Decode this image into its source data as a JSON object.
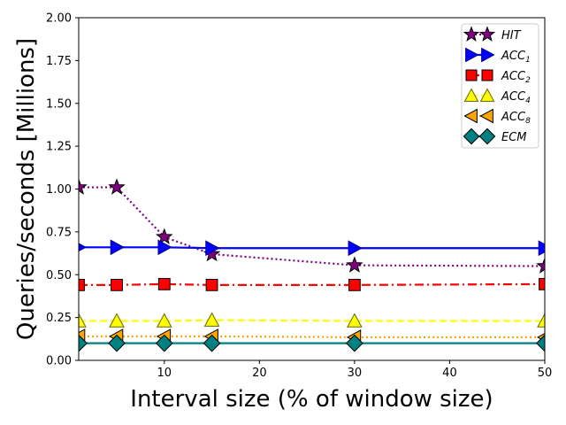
{
  "chart_data": {
    "type": "line",
    "xlabel": "Interval size (% of window size)",
    "ylabel": "Queries/seconds [Millions]",
    "xlim": [
      1,
      50
    ],
    "ylim": [
      0,
      2.0
    ],
    "x_ticks": [
      10,
      20,
      30,
      40,
      50
    ],
    "y_ticks": [
      0.0,
      0.25,
      0.5,
      0.75,
      1.0,
      1.25,
      1.5,
      1.75,
      2.0
    ],
    "x_tick_labels": [
      "10",
      "20",
      "30",
      "40",
      "50"
    ],
    "y_tick_labels": [
      "0.00",
      "0.25",
      "0.50",
      "0.75",
      "1.00",
      "1.25",
      "1.50",
      "1.75",
      "2.00"
    ],
    "legend_position": "top-right",
    "grid": false,
    "x": [
      1,
      5,
      10,
      15,
      30,
      50
    ],
    "series": [
      {
        "key": "hit",
        "label_base": "HIT",
        "label_sub": "",
        "color": "#800080",
        "edge": "#000000",
        "marker": "star",
        "linestyle": "dotted",
        "values": [
          1.01,
          1.01,
          0.72,
          0.62,
          0.555,
          0.55
        ]
      },
      {
        "key": "acc1",
        "label_base": "ACC",
        "label_sub": "1",
        "color": "#0000ff",
        "edge": "#00008b",
        "marker": "triangle-right",
        "linestyle": "solid",
        "values": [
          0.66,
          0.66,
          0.66,
          0.655,
          0.655,
          0.655
        ]
      },
      {
        "key": "acc2",
        "label_base": "ACC",
        "label_sub": "2",
        "color": "#ff0000",
        "edge": "#000000",
        "marker": "square",
        "linestyle": "dashdot",
        "values": [
          0.44,
          0.44,
          0.445,
          0.44,
          0.44,
          0.445
        ]
      },
      {
        "key": "acc4",
        "label_base": "ACC",
        "label_sub": "4",
        "color": "#ffff00",
        "edge": "#666600",
        "marker": "triangle-up",
        "linestyle": "dashed",
        "values": [
          0.23,
          0.23,
          0.23,
          0.235,
          0.23,
          0.23
        ]
      },
      {
        "key": "acc8",
        "label_base": "ACC",
        "label_sub": "8",
        "color": "#ffa500",
        "edge": "#000000",
        "marker": "triangle-left",
        "linestyle": "dotted",
        "values": [
          0.14,
          0.14,
          0.14,
          0.14,
          0.135,
          0.135
        ]
      },
      {
        "key": "ecm",
        "label_base": "ECM",
        "label_sub": "",
        "color": "#008080",
        "edge": "#000000",
        "marker": "diamond",
        "linestyle": "solid",
        "values": [
          0.1,
          0.1,
          0.1,
          0.1,
          0.1,
          0.1
        ]
      }
    ]
  }
}
